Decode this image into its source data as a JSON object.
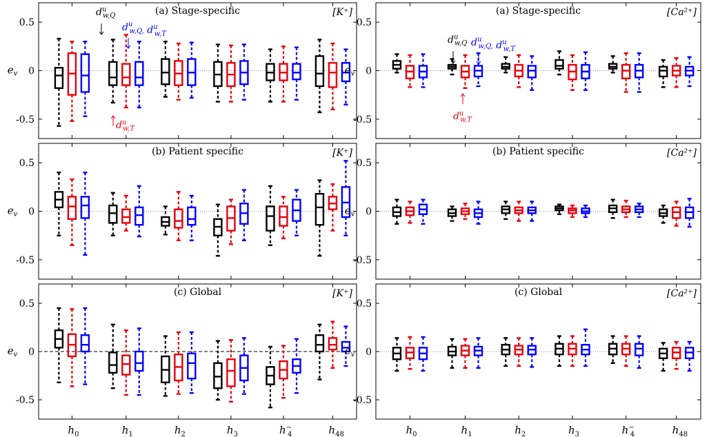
{
  "colors": {
    "d1": "#000000",
    "d2": "#e8000b",
    "d3": "#0000ff",
    "ref": "#8a8a8a"
  },
  "x_tick_labels": [
    {
      "base": "h",
      "sub": "0",
      "sup": ""
    },
    {
      "base": "h",
      "sub": "1",
      "sup": ""
    },
    {
      "base": "h",
      "sub": "2",
      "sup": ""
    },
    {
      "base": "h",
      "sub": "3",
      "sup": ""
    },
    {
      "base": "h",
      "sub": "4",
      "sup": "−"
    },
    {
      "base": "h",
      "sub": "48",
      "sup": ""
    }
  ],
  "series_labels": {
    "black": {
      "base": "d",
      "sup": "u",
      "sub": "w,Q"
    },
    "blue": "d^u_{w,Q}, d^u_{w,T}",
    "red": {
      "base": "d",
      "sup": "u",
      "sub": "w,T"
    }
  },
  "chart_data": [
    {
      "type": "box",
      "title": "(a) Stage-specific",
      "ion": "[K⁺]",
      "ylabel": "e_v",
      "yticks": [
        0.5,
        0,
        -0.5
      ],
      "ytick_labels": [
        "0.5",
        "0",
        "-0.5"
      ],
      "ylim": [
        -0.7,
        0.7
      ],
      "zero_line": "dotted",
      "series_count": 3,
      "boxes": [
        [
          [
            -0.57,
            -0.18,
            -0.05,
            0.03,
            0.33
          ],
          [
            -0.52,
            -0.25,
            -0.03,
            0.18,
            0.3
          ],
          [
            -0.47,
            -0.22,
            -0.05,
            0.17,
            0.3
          ]
        ],
        [
          [
            -0.33,
            -0.15,
            -0.07,
            0.09,
            0.32
          ],
          [
            -0.38,
            -0.15,
            -0.07,
            0.07,
            0.37
          ],
          [
            -0.38,
            -0.15,
            -0.07,
            0.09,
            0.3
          ]
        ],
        [
          [
            -0.27,
            -0.14,
            -0.02,
            0.12,
            0.3
          ],
          [
            -0.3,
            -0.15,
            -0.03,
            0.1,
            0.28
          ],
          [
            -0.28,
            -0.15,
            -0.02,
            0.12,
            0.29
          ]
        ],
        [
          [
            -0.32,
            -0.16,
            -0.04,
            0.09,
            0.27
          ],
          [
            -0.32,
            -0.16,
            -0.04,
            0.08,
            0.26
          ],
          [
            -0.3,
            -0.14,
            -0.02,
            0.1,
            0.27
          ]
        ],
        [
          [
            -0.32,
            -0.1,
            -0.02,
            0.07,
            0.22
          ],
          [
            -0.32,
            -0.1,
            -0.02,
            0.07,
            0.25
          ],
          [
            -0.3,
            -0.09,
            -0.02,
            0.07,
            0.24
          ]
        ],
        [
          [
            -0.43,
            -0.16,
            -0.03,
            0.15,
            0.32
          ],
          [
            -0.4,
            -0.17,
            -0.02,
            0.08,
            0.28
          ],
          [
            -0.35,
            -0.11,
            -0.02,
            0.08,
            0.22
          ]
        ]
      ]
    },
    {
      "type": "box",
      "title": "(a) Stage-specific",
      "ion": "[Ca²⁺]",
      "ylabel": "e_v",
      "yticks": [
        0.5,
        0,
        -0.5
      ],
      "ytick_labels": [
        "0.5",
        "0",
        "-0.5"
      ],
      "ylim": [
        -0.7,
        0.7
      ],
      "zero_line": "dotted",
      "series_count": 3,
      "boxes": [
        [
          [
            -0.02,
            0.02,
            0.06,
            0.1,
            0.17
          ],
          [
            -0.17,
            -0.08,
            -0.01,
            0.05,
            0.16
          ],
          [
            -0.17,
            -0.07,
            -0.01,
            0.05,
            0.17
          ]
        ],
        [
          [
            -0.04,
            0.02,
            0.04,
            0.06,
            0.12
          ],
          [
            -0.18,
            -0.07,
            -0.01,
            0.05,
            0.16
          ],
          [
            -0.16,
            -0.06,
            0.0,
            0.05,
            0.18
          ]
        ],
        [
          [
            -0.02,
            0.02,
            0.04,
            0.07,
            0.14
          ],
          [
            -0.17,
            -0.06,
            0.0,
            0.06,
            0.16
          ],
          [
            -0.2,
            -0.07,
            0.0,
            0.05,
            0.15
          ]
        ],
        [
          [
            -0.04,
            0.02,
            0.05,
            0.11,
            0.2
          ],
          [
            -0.2,
            -0.09,
            -0.01,
            0.06,
            0.16
          ],
          [
            -0.2,
            -0.08,
            -0.01,
            0.06,
            0.19
          ]
        ],
        [
          [
            -0.02,
            0.02,
            0.04,
            0.07,
            0.15
          ],
          [
            -0.22,
            -0.08,
            0.0,
            0.06,
            0.18
          ],
          [
            -0.22,
            -0.07,
            0.0,
            0.06,
            0.18
          ]
        ],
        [
          [
            -0.17,
            -0.06,
            0.0,
            0.04,
            0.11
          ],
          [
            -0.17,
            -0.05,
            0.0,
            0.05,
            0.13
          ],
          [
            -0.16,
            -0.05,
            0.0,
            0.04,
            0.14
          ]
        ]
      ]
    },
    {
      "type": "box",
      "title": "(b) Patient specific",
      "ion": "[K⁺]",
      "ylabel": "e_v",
      "yticks": [
        0.5,
        0,
        -0.5
      ],
      "ytick_labels": [
        "0.5",
        "0",
        "-0.5"
      ],
      "ylim": [
        -0.7,
        0.7
      ],
      "zero_line": "dotted",
      "series_count": 3,
      "boxes": [
        [
          [
            -0.25,
            0.04,
            0.12,
            0.2,
            0.4
          ],
          [
            -0.35,
            -0.08,
            0.05,
            0.15,
            0.33
          ],
          [
            -0.45,
            -0.07,
            0.06,
            0.15,
            0.4
          ]
        ],
        [
          [
            -0.25,
            -0.12,
            -0.02,
            0.06,
            0.19
          ],
          [
            -0.2,
            -0.12,
            -0.06,
            0.02,
            0.16
          ],
          [
            -0.26,
            -0.14,
            -0.04,
            0.04,
            0.26
          ]
        ],
        [
          [
            -0.24,
            -0.15,
            -0.11,
            -0.06,
            0.05
          ],
          [
            -0.3,
            -0.17,
            -0.1,
            0.02,
            0.2
          ],
          [
            -0.3,
            -0.14,
            -0.08,
            0.04,
            0.16
          ]
        ],
        [
          [
            -0.46,
            -0.25,
            -0.16,
            -0.08,
            0.07
          ],
          [
            -0.34,
            -0.2,
            -0.07,
            0.05,
            0.12
          ],
          [
            -0.3,
            -0.13,
            -0.02,
            0.08,
            0.22
          ]
        ],
        [
          [
            -0.35,
            -0.2,
            -0.05,
            0.05,
            0.26
          ],
          [
            -0.28,
            -0.15,
            -0.06,
            0.05,
            0.15
          ],
          [
            -0.25,
            -0.1,
            0.01,
            0.12,
            0.22
          ]
        ],
        [
          [
            -0.46,
            -0.14,
            0.04,
            0.18,
            0.32
          ],
          [
            -0.2,
            0.02,
            0.08,
            0.15,
            0.28
          ],
          [
            -0.25,
            -0.06,
            0.09,
            0.25,
            0.52
          ]
        ]
      ]
    },
    {
      "type": "box",
      "title": "(b) Patient specific",
      "ion": "[Ca²⁺]",
      "ylabel": "e_v",
      "yticks": [
        0.5,
        0,
        -0.5
      ],
      "ytick_labels": [
        "0.5",
        "0",
        "-0.5"
      ],
      "ylim": [
        -0.7,
        0.7
      ],
      "zero_line": "dotted",
      "series_count": 3,
      "boxes": [
        [
          [
            -0.13,
            -0.05,
            -0.01,
            0.04,
            0.12
          ],
          [
            -0.12,
            -0.04,
            0.0,
            0.04,
            0.1
          ],
          [
            -0.13,
            -0.03,
            0.02,
            0.07,
            0.12
          ]
        ],
        [
          [
            -0.1,
            -0.05,
            -0.02,
            0.02,
            0.05
          ],
          [
            -0.08,
            -0.03,
            0.0,
            0.03,
            0.08
          ],
          [
            -0.13,
            -0.06,
            -0.02,
            0.02,
            0.1
          ]
        ],
        [
          [
            -0.08,
            -0.02,
            0.02,
            0.05,
            0.1
          ],
          [
            -0.1,
            -0.02,
            0.01,
            0.04,
            0.1
          ],
          [
            -0.1,
            -0.02,
            0.01,
            0.04,
            0.1
          ]
        ],
        [
          [
            -0.03,
            0.01,
            0.03,
            0.05,
            0.07
          ],
          [
            -0.06,
            -0.02,
            0.01,
            0.03,
            0.06
          ],
          [
            -0.06,
            -0.02,
            0.0,
            0.03,
            0.06
          ]
        ],
        [
          [
            -0.07,
            -0.01,
            0.03,
            0.06,
            0.12
          ],
          [
            -0.06,
            -0.01,
            0.02,
            0.05,
            0.11
          ],
          [
            -0.06,
            -0.01,
            0.02,
            0.05,
            0.08
          ]
        ],
        [
          [
            -0.12,
            -0.05,
            -0.02,
            0.02,
            0.06
          ],
          [
            -0.15,
            -0.07,
            -0.01,
            0.04,
            0.1
          ],
          [
            -0.16,
            -0.07,
            -0.01,
            0.04,
            0.13
          ]
        ]
      ]
    },
    {
      "type": "box",
      "title": "(c) Global",
      "ion": "[K⁺]",
      "ylabel": "e_v",
      "yticks": [
        0.5,
        0,
        -0.5
      ],
      "ytick_labels": [
        "0.5",
        "0",
        "-0.5"
      ],
      "ylim": [
        -0.7,
        0.7
      ],
      "zero_line": "dashed",
      "series_count": 3,
      "boxes": [
        [
          [
            -0.32,
            0.04,
            0.13,
            0.22,
            0.45
          ],
          [
            -0.36,
            -0.05,
            0.07,
            0.18,
            0.44
          ],
          [
            -0.34,
            0.0,
            0.07,
            0.17,
            0.45
          ]
        ],
        [
          [
            -0.38,
            -0.22,
            -0.14,
            -0.01,
            0.28
          ],
          [
            -0.45,
            -0.24,
            -0.13,
            -0.04,
            0.22
          ],
          [
            -0.45,
            -0.2,
            -0.12,
            0.0,
            0.24
          ]
        ],
        [
          [
            -0.46,
            -0.32,
            -0.19,
            -0.05,
            0.16
          ],
          [
            -0.44,
            -0.3,
            -0.16,
            -0.03,
            0.2
          ],
          [
            -0.43,
            -0.28,
            -0.12,
            -0.02,
            0.2
          ]
        ],
        [
          [
            -0.5,
            -0.38,
            -0.26,
            -0.12,
            0.11
          ],
          [
            -0.52,
            -0.36,
            -0.2,
            -0.08,
            0.12
          ],
          [
            -0.44,
            -0.3,
            -0.17,
            -0.04,
            0.14
          ]
        ],
        [
          [
            -0.58,
            -0.34,
            -0.25,
            -0.16,
            0.05
          ],
          [
            -0.48,
            -0.28,
            -0.19,
            -0.1,
            0.06
          ],
          [
            -0.43,
            -0.22,
            -0.15,
            -0.08,
            0.13
          ]
        ],
        [
          [
            -0.29,
            0.0,
            0.07,
            0.17,
            0.28
          ],
          [
            -0.17,
            0.02,
            0.07,
            0.14,
            0.31
          ],
          [
            -0.15,
            0.0,
            0.04,
            0.1,
            0.26
          ]
        ]
      ]
    },
    {
      "type": "box",
      "title": "(c) Global",
      "ion": "[Ca²⁺]",
      "ylabel": "e_v",
      "yticks": [
        0.5,
        0,
        -0.5
      ],
      "ytick_labels": [
        "0.5",
        "0",
        "-0.5"
      ],
      "ylim": [
        -0.7,
        0.7
      ],
      "zero_line": "dotted",
      "series_count": 3,
      "boxes": [
        [
          [
            -0.2,
            -0.08,
            -0.02,
            0.04,
            0.14
          ],
          [
            -0.18,
            -0.07,
            -0.01,
            0.04,
            0.15
          ],
          [
            -0.2,
            -0.08,
            -0.02,
            0.04,
            0.15
          ]
        ],
        [
          [
            -0.17,
            -0.04,
            0.0,
            0.05,
            0.13
          ],
          [
            -0.17,
            -0.04,
            0.01,
            0.06,
            0.13
          ],
          [
            -0.17,
            -0.04,
            0.01,
            0.05,
            0.14
          ]
        ],
        [
          [
            -0.15,
            -0.03,
            0.02,
            0.07,
            0.14
          ],
          [
            -0.15,
            -0.03,
            0.02,
            0.06,
            0.14
          ],
          [
            -0.16,
            -0.03,
            0.02,
            0.06,
            0.14
          ]
        ],
        [
          [
            -0.15,
            -0.03,
            0.03,
            0.08,
            0.16
          ],
          [
            -0.15,
            -0.03,
            0.03,
            0.08,
            0.16
          ],
          [
            -0.15,
            -0.03,
            0.02,
            0.07,
            0.23
          ]
        ],
        [
          [
            -0.12,
            -0.03,
            0.03,
            0.08,
            0.16
          ],
          [
            -0.15,
            -0.03,
            0.03,
            0.08,
            0.16
          ],
          [
            -0.17,
            -0.04,
            0.03,
            0.08,
            0.16
          ]
        ],
        [
          [
            -0.2,
            -0.07,
            -0.02,
            0.03,
            0.09
          ],
          [
            -0.18,
            -0.07,
            -0.01,
            0.04,
            0.1
          ],
          [
            -0.2,
            -0.07,
            -0.01,
            0.04,
            0.1
          ]
        ]
      ]
    }
  ]
}
